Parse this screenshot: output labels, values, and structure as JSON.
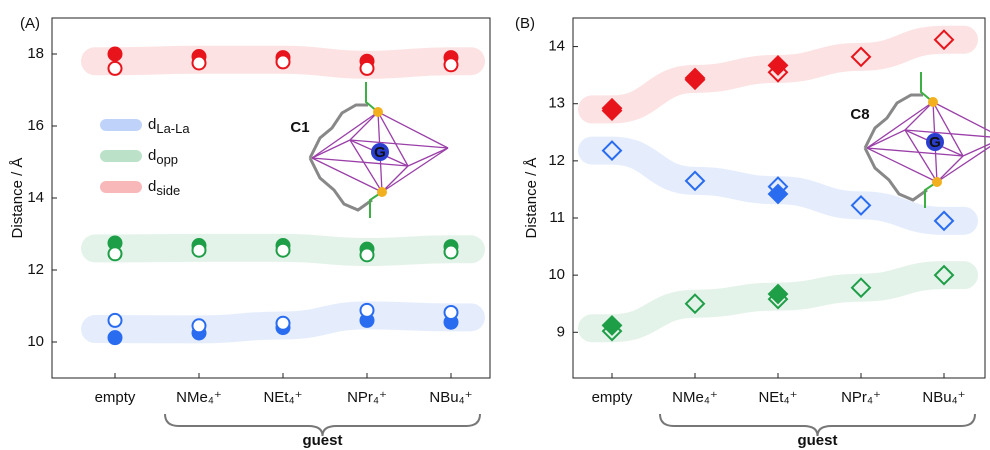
{
  "chart_data": [
    {
      "type": "dot",
      "panel_label": "(A)",
      "ylabel": "Distance / Å",
      "xlabel": "guest",
      "annotation": "C1",
      "molecule_label": "G",
      "marker": "circle",
      "categories": [
        "empty",
        "NMe₄⁺",
        "NEt₄⁺",
        "NPr₄⁺",
        "NBu₄⁺"
      ],
      "ylim": [
        9,
        19
      ],
      "yticks": [
        10,
        12,
        14,
        16,
        18
      ],
      "legend": [
        {
          "name": "dLa-La",
          "color": "#2a6cf0"
        },
        {
          "name": "dopp",
          "color": "#1f9e48"
        },
        {
          "name": "dside",
          "color": "#e8141c"
        }
      ],
      "series": [
        {
          "color": "#e8141c",
          "fill": true,
          "values": [
            18.0,
            17.93,
            17.9,
            17.8,
            17.9
          ]
        },
        {
          "color": "#e8141c",
          "fill": false,
          "values": [
            17.6,
            17.75,
            17.78,
            17.6,
            17.7
          ]
        },
        {
          "color": "#1f9e48",
          "fill": true,
          "values": [
            12.75,
            12.68,
            12.68,
            12.58,
            12.65
          ]
        },
        {
          "color": "#1f9e48",
          "fill": false,
          "values": [
            12.45,
            12.55,
            12.55,
            12.42,
            12.5
          ]
        },
        {
          "color": "#2a6cf0",
          "fill": true,
          "values": [
            10.12,
            10.25,
            10.4,
            10.6,
            10.55
          ]
        },
        {
          "color": "#2a6cf0",
          "fill": false,
          "values": [
            10.6,
            10.45,
            10.52,
            10.88,
            10.82
          ]
        }
      ]
    },
    {
      "type": "dot",
      "panel_label": "(B)",
      "ylabel": "Distance / Å",
      "xlabel": "guest",
      "annotation": "C8",
      "molecule_label": "G",
      "marker": "diamond",
      "categories": [
        "empty",
        "NMe₄⁺",
        "NEt₄⁺",
        "NPr₄⁺",
        "NBu₄⁺"
      ],
      "ylim": [
        8.2,
        14.5
      ],
      "yticks": [
        9,
        10,
        11,
        12,
        13,
        14
      ],
      "series": [
        {
          "color": "#e8141c",
          "fill": true,
          "values": [
            12.92,
            13.45,
            13.67,
            null,
            null
          ]
        },
        {
          "color": "#e8141c",
          "fill": false,
          "values": [
            12.88,
            13.42,
            13.55,
            13.82,
            14.12
          ]
        },
        {
          "color": "#2a6cf0",
          "fill": true,
          "values": [
            null,
            null,
            11.42,
            null,
            null
          ]
        },
        {
          "color": "#2a6cf0",
          "fill": false,
          "values": [
            12.18,
            11.65,
            11.55,
            11.22,
            10.95
          ]
        },
        {
          "color": "#1f9e48",
          "fill": true,
          "values": [
            9.12,
            null,
            9.67,
            null,
            null
          ]
        },
        {
          "color": "#1f9e48",
          "fill": false,
          "values": [
            9.02,
            9.5,
            9.58,
            9.78,
            10.0
          ]
        }
      ]
    }
  ]
}
